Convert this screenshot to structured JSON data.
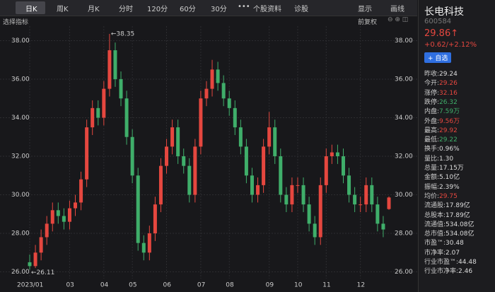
{
  "toolbar": {
    "tabs": [
      "日K",
      "周K",
      "月K",
      "分时",
      "120分",
      "60分",
      "30分"
    ],
    "more": [
      "个股资料",
      "诊股"
    ],
    "right": [
      "显示",
      "画线"
    ]
  },
  "subbar": {
    "indicator": "选择指标",
    "adjust": "前复权"
  },
  "quote": {
    "name": "长电科技",
    "code": "600584",
    "price": "29.86↑",
    "change": "+0.62/+2.12%",
    "watch_button": "+ 自选",
    "stats": [
      {
        "label": "昨收:",
        "value": "29.24",
        "color": "#dddddd"
      },
      {
        "label": "今开:",
        "value": "29.26",
        "color": "#e5473f"
      },
      {
        "label": "涨停:",
        "value": "32.16",
        "color": "#e5473f"
      },
      {
        "label": "跌停:",
        "value": "26.32",
        "color": "#3fae6a"
      },
      {
        "label": "内盘:",
        "value": "7.59万",
        "color": "#3fae6a"
      },
      {
        "label": "外盘:",
        "value": "9.56万",
        "color": "#e5473f"
      },
      {
        "label": "最高:",
        "value": "29.92",
        "color": "#e5473f"
      },
      {
        "label": "最低:",
        "value": "29.22",
        "color": "#3fae6a"
      },
      {
        "label": "换手:",
        "value": "0.96%",
        "color": "#dddddd"
      },
      {
        "label": "量比:",
        "value": "1.30",
        "color": "#dddddd"
      },
      {
        "label": "总量:",
        "value": "17.15万",
        "color": "#dddddd"
      },
      {
        "label": "金额:",
        "value": "5.10亿",
        "color": "#dddddd"
      },
      {
        "label": "振幅:",
        "value": "2.39%",
        "color": "#dddddd"
      },
      {
        "label": "均价:",
        "value": "29.75",
        "color": "#e5473f"
      },
      {
        "label": "流通股:",
        "value": "17.89亿",
        "color": "#dddddd"
      },
      {
        "label": "总股本:",
        "value": "17.89亿",
        "color": "#dddddd"
      },
      {
        "label": "流通值:",
        "value": "534.08亿",
        "color": "#dddddd"
      },
      {
        "label": "总市值:",
        "value": "534.08亿",
        "color": "#dddddd"
      },
      {
        "label": "市盈™:",
        "value": "30.48",
        "color": "#dddddd"
      },
      {
        "label": "市净率:",
        "value": "2.07",
        "color": "#dddddd"
      },
      {
        "label": "行业市盈™:",
        "value": "44.48",
        "color": "#dddddd"
      },
      {
        "label": "行业市净率:",
        "value": "2.46",
        "color": "#dddddd"
      }
    ]
  },
  "chart_data": {
    "type": "candlestick",
    "up_color": "#e5473f",
    "down_color": "#3fae6a",
    "grid": true,
    "categories": [
      "2023/01",
      null,
      null,
      null,
      null,
      null,
      null,
      "03",
      null,
      null,
      null,
      null,
      null,
      "04",
      null,
      null,
      null,
      null,
      "05",
      null,
      null,
      null,
      null,
      null,
      "06",
      null,
      null,
      null,
      null,
      null,
      "07",
      null,
      null,
      null,
      null,
      "08",
      null,
      null,
      null,
      null,
      null,
      null,
      "09",
      null,
      null,
      null,
      null,
      "10",
      null,
      null,
      null,
      null,
      "11",
      null,
      null,
      null,
      null,
      null,
      "12",
      null,
      null,
      null,
      null,
      null
    ],
    "open": [
      26.5,
      26.3,
      27.0,
      27.8,
      28.5,
      29.2,
      28.9,
      28.6,
      29.3,
      29.6,
      30.8,
      33.5,
      34.5,
      34.0,
      35.5,
      37.5,
      36.0,
      35.0,
      33.0,
      31.0,
      27.5,
      27.0,
      28.0,
      29.5,
      31.5,
      32.5,
      33.5,
      32.0,
      31.5,
      30.0,
      32.5,
      35.0,
      35.5,
      36.5,
      35.8,
      35.0,
      34.5,
      33.5,
      32.5,
      31.0,
      30.0,
      30.5,
      32.5,
      33.5,
      32.0,
      30.0,
      29.5,
      30.5,
      30.5,
      29.5,
      28.5,
      27.8,
      30.5,
      32.0,
      32.2,
      32.0,
      31.0,
      30.0,
      29.5,
      29.5,
      30.5,
      29.5,
      28.5,
      29.26
    ],
    "high": [
      26.9,
      27.4,
      28.2,
      28.9,
      29.6,
      29.6,
      29.3,
      29.7,
      30.0,
      31.2,
      33.9,
      34.9,
      34.9,
      35.9,
      38.35,
      37.9,
      36.4,
      35.4,
      33.4,
      31.4,
      27.9,
      28.4,
      29.9,
      31.9,
      32.9,
      33.9,
      33.9,
      32.4,
      31.9,
      32.9,
      35.4,
      35.9,
      37.0,
      36.9,
      36.2,
      35.4,
      34.9,
      33.9,
      32.9,
      31.4,
      30.9,
      32.9,
      34.3,
      33.9,
      32.4,
      30.4,
      30.9,
      30.9,
      30.9,
      29.9,
      28.9,
      30.9,
      32.4,
      32.6,
      32.6,
      32.4,
      31.4,
      30.4,
      29.9,
      30.9,
      30.9,
      29.9,
      28.9,
      29.92
    ],
    "low": [
      26.11,
      26.2,
      26.6,
      27.4,
      28.1,
      28.5,
      28.2,
      28.2,
      28.9,
      29.2,
      30.4,
      33.1,
      33.6,
      33.6,
      35.1,
      35.6,
      34.6,
      32.6,
      30.6,
      27.1,
      26.6,
      26.6,
      27.6,
      29.1,
      31.1,
      32.1,
      31.6,
      31.1,
      29.6,
      29.6,
      32.1,
      34.6,
      35.1,
      35.4,
      34.6,
      34.1,
      33.1,
      32.1,
      30.6,
      29.6,
      29.6,
      30.1,
      32.1,
      31.6,
      29.6,
      29.1,
      29.1,
      30.1,
      29.1,
      28.1,
      27.4,
      27.4,
      30.1,
      31.6,
      31.6,
      30.6,
      29.6,
      29.1,
      29.1,
      29.1,
      29.1,
      28.1,
      27.8,
      29.22
    ],
    "close": [
      26.3,
      27.0,
      27.8,
      28.5,
      29.2,
      28.9,
      28.6,
      29.3,
      29.6,
      30.8,
      33.5,
      34.5,
      34.0,
      35.5,
      37.5,
      36.0,
      35.0,
      33.0,
      31.0,
      27.5,
      27.0,
      28.0,
      29.5,
      31.5,
      32.5,
      33.5,
      32.0,
      31.5,
      30.0,
      32.5,
      35.0,
      35.5,
      36.5,
      35.8,
      35.0,
      34.5,
      33.5,
      32.5,
      31.0,
      30.0,
      30.5,
      32.5,
      33.5,
      32.0,
      30.0,
      29.5,
      30.5,
      30.5,
      29.5,
      28.5,
      27.8,
      30.5,
      32.0,
      32.2,
      32.0,
      31.0,
      30.0,
      29.5,
      29.5,
      30.5,
      29.5,
      28.5,
      28.2,
      29.86
    ],
    "high_label": "←38.35",
    "low_label": "←26.11",
    "ylim": [
      25.8,
      38.75
    ],
    "yticks": [
      {
        "value": 26,
        "label": "26.00"
      },
      {
        "value": 28,
        "label": "28.00"
      },
      {
        "value": 30,
        "label": "30.00"
      },
      {
        "value": 32,
        "label": "32.00"
      },
      {
        "value": 34,
        "label": "34.00"
      },
      {
        "value": 36,
        "label": "36.00"
      },
      {
        "value": 38,
        "label": "38.00"
      }
    ]
  }
}
